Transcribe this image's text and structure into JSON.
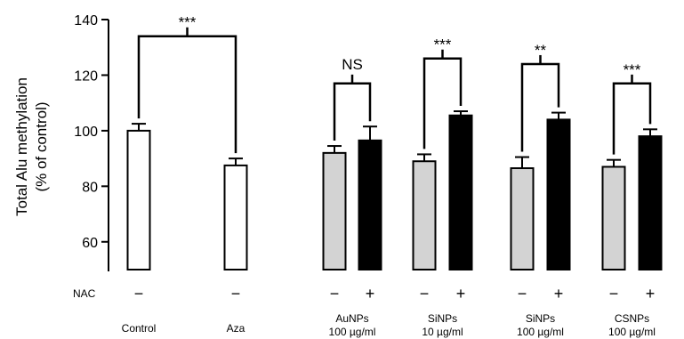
{
  "chart_data": {
    "type": "bar",
    "ylabel": "Total Alu methylation",
    "ylabel2": "(% of control)",
    "ylim": [
      50,
      140
    ],
    "yticks": [
      60,
      80,
      100,
      120,
      140
    ],
    "nac_label": "NAC",
    "minus_symbol": "−",
    "plus_symbol": "+",
    "colors": {
      "none": "#ffffff",
      "no_nac": "#d3d3d3",
      "with_nac": "#000000"
    },
    "groups": [
      {
        "name": "Control",
        "sub": "",
        "bars": [
          {
            "nac": "minus",
            "value": 100,
            "err": 2.5,
            "fill": "none"
          }
        ]
      },
      {
        "name": "Aza",
        "sub": "",
        "bars": [
          {
            "nac": "minus",
            "value": 87.5,
            "err": 2.5,
            "fill": "none"
          }
        ]
      },
      {
        "name": "AuNPs",
        "sub": "100 µg/ml",
        "bars": [
          {
            "nac": "minus",
            "value": 92,
            "err": 2.5,
            "fill": "no_nac"
          },
          {
            "nac": "plus",
            "value": 96.5,
            "err": 5,
            "fill": "with_nac"
          }
        ]
      },
      {
        "name": "SiNPs",
        "sub": "10 µg/ml",
        "bars": [
          {
            "nac": "minus",
            "value": 89,
            "err": 2.5,
            "fill": "no_nac"
          },
          {
            "nac": "plus",
            "value": 105.5,
            "err": 1.5,
            "fill": "with_nac"
          }
        ]
      },
      {
        "name": "SiNPs",
        "sub": "100 µg/ml",
        "bars": [
          {
            "nac": "minus",
            "value": 86.5,
            "err": 4,
            "fill": "no_nac"
          },
          {
            "nac": "plus",
            "value": 104,
            "err": 2.5,
            "fill": "with_nac"
          }
        ]
      },
      {
        "name": "CSNPs",
        "sub": "100 µg/ml",
        "bars": [
          {
            "nac": "minus",
            "value": 87,
            "err": 2.5,
            "fill": "no_nac"
          },
          {
            "nac": "plus",
            "value": 98,
            "err": 2.5,
            "fill": "with_nac"
          }
        ]
      }
    ],
    "significance": [
      {
        "label": "***",
        "from": [
          0,
          0
        ],
        "to": [
          1,
          0
        ],
        "level": 134
      },
      {
        "label": "NS",
        "from": [
          2,
          0
        ],
        "to": [
          2,
          1
        ],
        "level": 117
      },
      {
        "label": "***",
        "from": [
          3,
          0
        ],
        "to": [
          3,
          1
        ],
        "level": 126
      },
      {
        "label": "**",
        "from": [
          4,
          0
        ],
        "to": [
          4,
          1
        ],
        "level": 124
      },
      {
        "label": "***",
        "from": [
          5,
          0
        ],
        "to": [
          5,
          1
        ],
        "level": 117
      }
    ]
  }
}
